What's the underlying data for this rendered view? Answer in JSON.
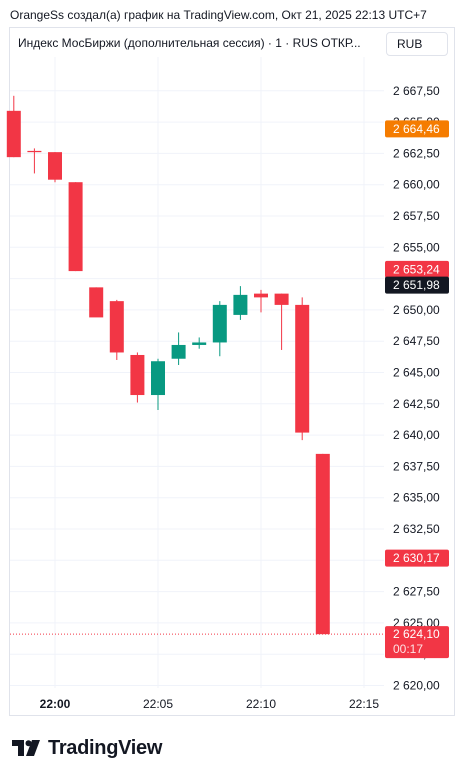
{
  "header": {
    "attribution": "OrangeSs создал(а) график на TradingView.com, Окт 21, 2025 22:13 UTC+7",
    "legend": "Индекс МосБиржи (дополнительная сессия) · 1 · RUS  ОТКР...",
    "currency_button": "RUB"
  },
  "footer": {
    "brand": "TradingView"
  },
  "colors": {
    "up": "#089981",
    "down": "#f23645",
    "grid": "#f0f3fa",
    "orange": "#f57c00",
    "black": "#131722"
  },
  "chart_data": {
    "type": "candlestick",
    "interval_minutes": 1,
    "y_ticks": [
      "2 667,50",
      "2 665,00",
      "2 662,50",
      "2 660,00",
      "2 657,50",
      "2 655,00",
      "2 652,50",
      "2 650,00",
      "2 647,50",
      "2 645,00",
      "2 642,50",
      "2 640,00",
      "2 637,50",
      "2 635,00",
      "2 632,50",
      "2 630,00",
      "2 627,50",
      "2 625,00",
      "2 622,50",
      "2 620,00"
    ],
    "y_tick_values": [
      2667.5,
      2665,
      2662.5,
      2660,
      2657.5,
      2655,
      2652.5,
      2650,
      2647.5,
      2645,
      2642.5,
      2640,
      2637.5,
      2635,
      2632.5,
      2630,
      2627.5,
      2625,
      2622.5,
      2620
    ],
    "ylim": [
      2619.8,
      2670.2
    ],
    "x_ticks": [
      {
        "label": "22:00",
        "minute": 0,
        "bold": true
      },
      {
        "label": "22:05",
        "minute": 5,
        "bold": false
      },
      {
        "label": "22:10",
        "minute": 10,
        "bold": false
      },
      {
        "label": "22:15",
        "minute": 15,
        "bold": false
      }
    ],
    "candles": [
      {
        "minute": -2,
        "open": 2665.9,
        "high": 2667.1,
        "low": 2662.2,
        "close": 2662.2
      },
      {
        "minute": -1,
        "open": 2662.7,
        "high": 2662.9,
        "low": 2660.9,
        "close": 2662.6
      },
      {
        "minute": 0,
        "open": 2662.6,
        "high": 2662.6,
        "low": 2660.2,
        "close": 2660.4
      },
      {
        "minute": 1,
        "open": 2660.2,
        "high": 2660.2,
        "low": 2653.1,
        "close": 2653.1
      },
      {
        "minute": 2,
        "open": 2651.8,
        "high": 2651.8,
        "low": 2649.5,
        "close": 2649.4
      },
      {
        "minute": 3,
        "open": 2650.7,
        "high": 2650.8,
        "low": 2646.0,
        "close": 2646.6
      },
      {
        "minute": 4,
        "open": 2646.4,
        "high": 2646.6,
        "low": 2642.6,
        "close": 2643.2
      },
      {
        "minute": 5,
        "open": 2643.2,
        "high": 2646.1,
        "low": 2642.0,
        "close": 2645.9
      },
      {
        "minute": 6,
        "open": 2646.1,
        "high": 2648.2,
        "low": 2645.6,
        "close": 2647.2
      },
      {
        "minute": 7,
        "open": 2647.2,
        "high": 2647.8,
        "low": 2646.9,
        "close": 2647.4
      },
      {
        "minute": 8,
        "open": 2647.4,
        "high": 2650.7,
        "low": 2646.3,
        "close": 2650.4
      },
      {
        "minute": 9,
        "open": 2649.6,
        "high": 2651.9,
        "low": 2649.2,
        "close": 2651.2
      },
      {
        "minute": 10,
        "open": 2651.3,
        "high": 2651.6,
        "low": 2649.8,
        "close": 2651.0
      },
      {
        "minute": 11,
        "open": 2651.3,
        "high": 2651.3,
        "low": 2646.8,
        "close": 2650.4
      },
      {
        "minute": 12,
        "open": 2650.4,
        "high": 2651.0,
        "low": 2639.6,
        "close": 2640.2
      },
      {
        "minute": 13,
        "open": 2638.5,
        "high": 2638.5,
        "low": 2624.1,
        "close": 2624.1
      }
    ],
    "price_labels": [
      {
        "text": "2 664,46",
        "value": 2664.46,
        "style": "orange"
      },
      {
        "text": "2 653,24",
        "value": 2653.24,
        "style": "red"
      },
      {
        "text": "2 651,98",
        "value": 2651.98,
        "style": "black"
      },
      {
        "text": "2 630,17",
        "value": 2630.17,
        "style": "red"
      }
    ],
    "last_price": {
      "text": "2 624,10",
      "value": 2624.1,
      "countdown": "00:17"
    }
  }
}
